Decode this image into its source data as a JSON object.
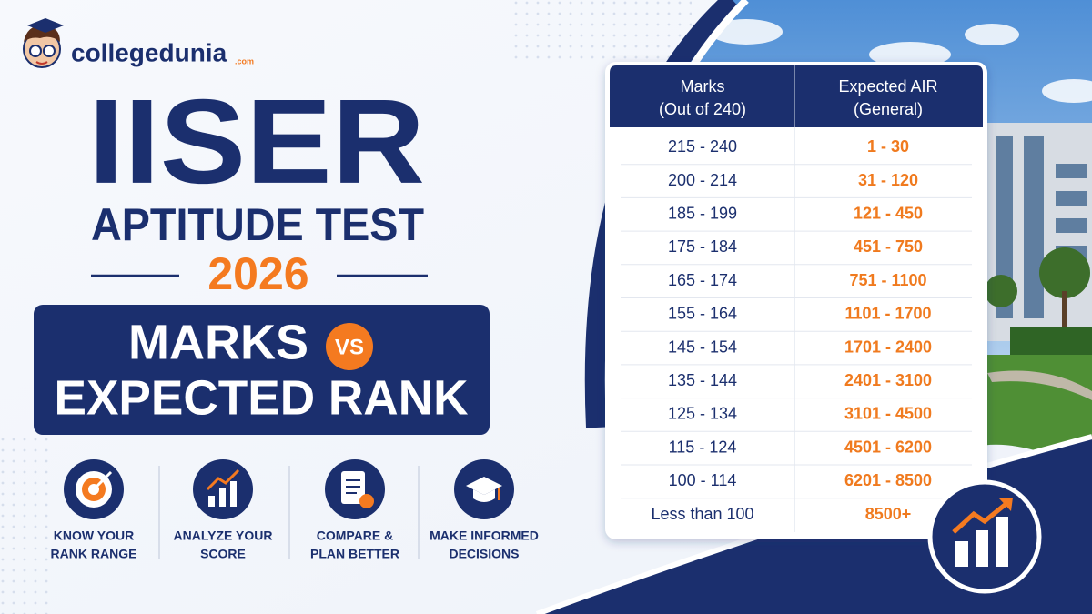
{
  "logo": {
    "name": "collegedunia",
    "suffix": ".com"
  },
  "title": {
    "line1": "IISER",
    "line2": "APTITUDE TEST",
    "year": "2026"
  },
  "banner": {
    "line1": "MARKS",
    "vs": "VS",
    "line2": "EXPECTED RANK"
  },
  "features": [
    {
      "lines": [
        "KNOW YOUR",
        "RANK RANGE"
      ]
    },
    {
      "lines": [
        "ANALYZE YOUR",
        "SCORE"
      ]
    },
    {
      "lines": [
        "COMPARE &",
        "PLAN BETTER"
      ]
    },
    {
      "lines": [
        "MAKE INFORMED",
        "DECISIONS"
      ]
    }
  ],
  "table": {
    "header": [
      {
        "lines": [
          "Marks",
          "(Out of 240)"
        ]
      },
      {
        "lines": [
          "Expected AIR",
          "(General)"
        ]
      }
    ],
    "rows": [
      [
        "215 - 240",
        "1 - 30"
      ],
      [
        "200 - 214",
        "31 - 120"
      ],
      [
        "185 - 199",
        "121 - 450"
      ],
      [
        "175 - 184",
        "451 - 750"
      ],
      [
        "165 - 174",
        "751 - 1100"
      ],
      [
        "155 - 164",
        "1101 - 1700"
      ],
      [
        "145 - 154",
        "1701 - 2400"
      ],
      [
        "135 - 144",
        "2401 - 3100"
      ],
      [
        "125 - 134",
        "3101 - 4500"
      ],
      [
        "115 - 124",
        "4501 - 6200"
      ],
      [
        "100 - 114",
        "6201 - 8500"
      ],
      [
        "Less than 100",
        "8500+"
      ]
    ]
  }
}
